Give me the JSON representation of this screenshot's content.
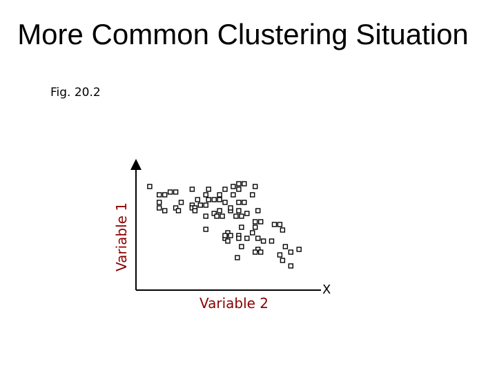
{
  "slide": {
    "title": "More Common Clustering Situation",
    "figure_label": "Fig. 20.2"
  },
  "chart_data": {
    "type": "scatter",
    "title": "",
    "xlabel": "Variable 2",
    "ylabel": "Variable 1",
    "axis_end_label": "X",
    "xlim": [
      0,
      270
    ],
    "ylim": [
      0,
      182
    ],
    "grid": false,
    "legend": "none",
    "colors": {
      "axis": "#000000",
      "label": "#8b0000",
      "marker": "#000000"
    },
    "marker": "hollow-square",
    "x": [
      20,
      34,
      42,
      50,
      58,
      34,
      66,
      34,
      58,
      82,
      106,
      130,
      150,
      158,
      142,
      150,
      174,
      102,
      122,
      142,
      170,
      90,
      106,
      114,
      82,
      122,
      130,
      150,
      158,
      82,
      86,
      94,
      102,
      114,
      138,
      178,
      122,
      150,
      182,
      42,
      62,
      86,
      102,
      118,
      126,
      138,
      146,
      154,
      162,
      174,
      102,
      134,
      154,
      170,
      130,
      138,
      150,
      174,
      202,
      210,
      214,
      130,
      134,
      150,
      162,
      178,
      186,
      198,
      218,
      178,
      154,
      174,
      182,
      210,
      226,
      238,
      148,
      214,
      226
    ],
    "y": [
      150,
      138,
      138,
      142,
      142,
      127,
      127,
      119,
      119,
      146,
      146,
      146,
      154,
      154,
      150,
      146,
      150,
      138,
      138,
      138,
      138,
      131,
      131,
      131,
      123,
      131,
      127,
      127,
      127,
      119,
      119,
      123,
      123,
      111,
      115,
      115,
      115,
      115,
      99,
      115,
      115,
      115,
      107,
      107,
      107,
      119,
      107,
      107,
      111,
      91,
      88,
      83,
      91,
      83,
      75,
      79,
      79,
      99,
      95,
      95,
      87,
      79,
      71,
      75,
      75,
      75,
      71,
      71,
      63,
      59,
      63,
      55,
      55,
      51,
      55,
      59,
      47,
      43,
      35
    ]
  }
}
